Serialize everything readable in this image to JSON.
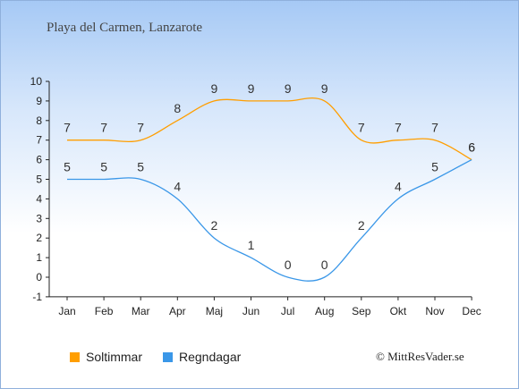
{
  "title": "Playa del Carmen, Lanzarote",
  "copyright": "© MittResVader.se",
  "chart_data": {
    "type": "line",
    "title": "Playa del Carmen, Lanzarote",
    "categories": [
      "Jan",
      "Feb",
      "Mar",
      "Apr",
      "Maj",
      "Jun",
      "Jul",
      "Aug",
      "Sep",
      "Okt",
      "Nov",
      "Dec"
    ],
    "ylim": [
      -1,
      10
    ],
    "yticks": [
      "-1",
      "0",
      "1",
      "2",
      "3",
      "4",
      "5",
      "6",
      "7",
      "8",
      "9",
      "10"
    ],
    "grid": false,
    "legend_position": "bottom-left",
    "series": [
      {
        "name": "Soltimmar",
        "color": "#ff9e00",
        "values": [
          7,
          7,
          7,
          8,
          9,
          9,
          9,
          9,
          7,
          7,
          7,
          6
        ]
      },
      {
        "name": "Regndagar",
        "color": "#3a97e8",
        "values": [
          5,
          5,
          5,
          4,
          2,
          1,
          0,
          0,
          2,
          4,
          5,
          6
        ]
      }
    ]
  }
}
